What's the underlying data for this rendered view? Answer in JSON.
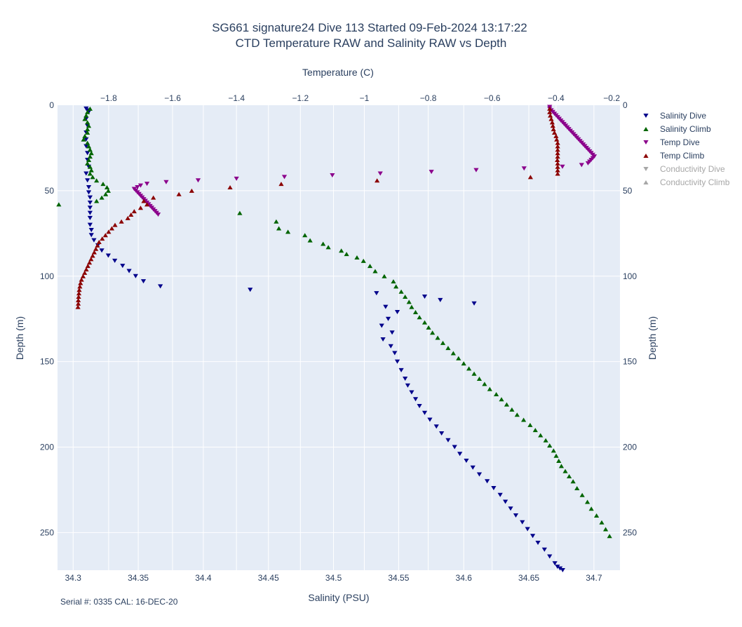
{
  "title_line1": "SG661 signature24 Dive 113 Started 09-Feb-2024 13:17:22",
  "title_line2": "CTD Temperature RAW and Salinity RAW vs Depth",
  "footnote": "Serial #: 0335  CAL: 16-DEC-20",
  "colors": {
    "plot_bg": "#e5ecf6",
    "grid": "#ffffff",
    "salinity_dive": "#00008b",
    "salinity_climb": "#006400",
    "temp_dive": "#8b008b",
    "temp_climb": "#8b0000",
    "conductivity": "#a7a7a7"
  },
  "chart_data": {
    "type": "scatter",
    "x_bottom": {
      "label": "Salinity (PSU)",
      "range": [
        34.288,
        34.72
      ],
      "ticks": [
        34.3,
        34.35,
        34.4,
        34.45,
        34.5,
        34.55,
        34.6,
        34.65,
        34.7
      ],
      "tick_labels": [
        "34.3",
        "34.35",
        "34.4",
        "34.45",
        "34.5",
        "34.55",
        "34.6",
        "34.65",
        "34.7"
      ]
    },
    "x_top": {
      "label": "Temperature (C)",
      "range": [
        -1.96,
        -0.2
      ],
      "ticks": [
        -1.8,
        -1.6,
        -1.4,
        -1.2,
        -1,
        -0.8,
        -0.6,
        -0.4,
        -0.2
      ],
      "tick_labels": [
        "−1.8",
        "−1.6",
        "−1.4",
        "−1.2",
        "−1",
        "−0.8",
        "−0.6",
        "−0.4",
        "−0.2"
      ]
    },
    "y": {
      "label": "Depth (m)",
      "range": [
        0,
        272
      ],
      "reversed": true,
      "ticks": [
        0,
        50,
        100,
        150,
        200,
        250
      ],
      "tick_labels": [
        "0",
        "50",
        "100",
        "150",
        "200",
        "250"
      ]
    },
    "grid": true,
    "legend_position": "right",
    "series": [
      {
        "name": "Salinity Dive",
        "axis": "salinity",
        "marker": "triangle-down",
        "color": "#00008b",
        "visible": true,
        "x": [
          34.31,
          34.311,
          34.312,
          34.31,
          34.311,
          34.31,
          34.31,
          34.31,
          34.311,
          34.311,
          34.312,
          34.31,
          34.311,
          34.312,
          34.312,
          34.313,
          34.313,
          34.313,
          34.313,
          34.313,
          34.313,
          34.314,
          34.314,
          34.316,
          34.319,
          34.322,
          34.327,
          34.332,
          34.338,
          34.343,
          34.348,
          34.354,
          34.367,
          34.436,
          34.533,
          34.57,
          34.582,
          34.608,
          34.54,
          34.549,
          34.542,
          34.537,
          34.545,
          34.538,
          34.544,
          34.547,
          34.549,
          34.552,
          34.555,
          34.557,
          34.56,
          34.563,
          34.566,
          34.57,
          34.574,
          34.579,
          34.583,
          34.588,
          34.593,
          34.597,
          34.602,
          34.607,
          34.612,
          34.618,
          34.623,
          34.628,
          34.632,
          34.636,
          34.64,
          34.645,
          34.649,
          34.653,
          34.657,
          34.662,
          34.666,
          34.67,
          34.672,
          34.674,
          34.676,
          34.679,
          34.682,
          34.685,
          34.689,
          34.693,
          34.698,
          34.703,
          34.708,
          34.712
        ],
        "y": [
          2,
          3,
          4,
          8,
          12,
          16,
          20,
          24,
          28,
          32,
          36,
          40,
          44,
          48,
          51,
          54,
          57,
          60,
          63,
          66,
          70,
          73,
          76,
          79,
          82,
          85,
          88,
          91,
          94,
          97,
          100,
          103,
          106,
          108,
          110,
          112,
          114,
          116,
          118,
          121,
          125,
          129,
          133,
          137,
          141,
          145,
          150,
          155,
          160,
          164,
          168,
          172,
          176,
          180,
          184,
          188,
          192,
          196,
          200,
          204,
          208,
          212,
          216,
          220,
          224,
          228,
          232,
          236,
          240,
          244,
          248,
          252,
          256,
          260,
          264,
          268,
          270,
          271,
          272,
          273,
          274,
          275,
          276,
          277,
          278,
          279,
          280,
          281
        ]
      },
      {
        "name": "Salinity Climb",
        "axis": "salinity",
        "marker": "triangle-up",
        "color": "#006400",
        "visible": true,
        "x": [
          34.313,
          34.311,
          34.31,
          34.309,
          34.311,
          34.312,
          34.311,
          34.311,
          34.309,
          34.308,
          34.311,
          34.312,
          34.313,
          34.314,
          34.313,
          34.312,
          34.311,
          34.313,
          34.314,
          34.313,
          34.315,
          34.318,
          34.323,
          34.326,
          34.327,
          34.325,
          34.322,
          34.318,
          34.289,
          34.428,
          34.456,
          34.458,
          34.465,
          34.478,
          34.482,
          34.492,
          34.496,
          34.506,
          34.51,
          34.518,
          34.523,
          34.528,
          34.532,
          34.539,
          34.546,
          34.548,
          34.552,
          34.555,
          34.558,
          34.56,
          34.563,
          34.566,
          34.57,
          34.573,
          34.576,
          34.58,
          34.584,
          34.588,
          34.592,
          34.596,
          34.6,
          34.604,
          34.608,
          34.612,
          34.616,
          34.62,
          34.625,
          34.629,
          34.633,
          34.637,
          34.641,
          34.646,
          34.651,
          34.655,
          34.659,
          34.663,
          34.666,
          34.669,
          34.671,
          34.673,
          34.675,
          34.678,
          34.681,
          34.684,
          34.687,
          34.691,
          34.695,
          34.698,
          34.702,
          34.706,
          34.709,
          34.712
        ],
        "y": [
          2,
          4,
          6,
          8,
          10,
          12,
          14,
          16,
          18,
          20,
          22,
          24,
          26,
          28,
          30,
          32,
          34,
          36,
          38,
          40,
          42,
          44,
          46,
          48,
          50,
          52,
          54,
          56,
          58,
          63,
          68,
          72,
          74,
          76,
          79,
          81,
          83,
          85,
          87,
          89,
          91,
          94,
          97,
          100,
          103,
          106,
          109,
          112,
          115,
          118,
          121,
          124,
          127,
          130,
          133,
          136,
          139,
          142,
          145,
          148,
          151,
          154,
          157,
          160,
          163,
          166,
          169,
          172,
          175,
          178,
          181,
          184,
          187,
          190,
          193,
          196,
          199,
          202,
          205,
          208,
          211,
          214,
          217,
          220,
          224,
          228,
          232,
          236,
          240,
          244,
          248,
          252
        ]
      },
      {
        "name": "Temp Dive",
        "axis": "temperature",
        "marker": "triangle-down",
        "color": "#8b008b",
        "visible": true,
        "x": [
          -0.42,
          -0.42,
          -0.415,
          -0.41,
          -0.405,
          -0.4,
          -0.395,
          -0.39,
          -0.385,
          -0.38,
          -0.375,
          -0.37,
          -0.365,
          -0.36,
          -0.355,
          -0.35,
          -0.345,
          -0.34,
          -0.335,
          -0.33,
          -0.325,
          -0.32,
          -0.315,
          -0.31,
          -0.305,
          -0.3,
          -0.295,
          -0.29,
          -0.285,
          -0.28,
          -0.285,
          -0.29,
          -0.295,
          -0.3,
          -0.32,
          -0.38,
          -0.5,
          -0.65,
          -0.79,
          -0.95,
          -1.1,
          -1.25,
          -1.4,
          -1.52,
          -1.62,
          -1.68,
          -1.7,
          -1.71,
          -1.72,
          -1.715,
          -1.71,
          -1.705,
          -1.7,
          -1.695,
          -1.69,
          -1.685,
          -1.68,
          -1.675,
          -1.67,
          -1.665,
          -1.66,
          -1.655,
          -1.65,
          -1.645
        ],
        "y": [
          1,
          2,
          3,
          4,
          5,
          6,
          7,
          8,
          9,
          10,
          11,
          12,
          13,
          14,
          15,
          16,
          17,
          18,
          19,
          20,
          21,
          22,
          23,
          24,
          25,
          26,
          27,
          28,
          29,
          30,
          31,
          32,
          33,
          34,
          35,
          36,
          37,
          38,
          39,
          40,
          41,
          42,
          43,
          44,
          45,
          46,
          47,
          48,
          49,
          50,
          51,
          52,
          53,
          54,
          55,
          56,
          57,
          58,
          59,
          60,
          61,
          62,
          63,
          64
        ]
      },
      {
        "name": "Temp Climb",
        "axis": "temperature",
        "marker": "triangle-up",
        "color": "#8b0000",
        "visible": true,
        "x": [
          -0.42,
          -0.42,
          -0.418,
          -0.415,
          -0.412,
          -0.41,
          -0.408,
          -0.405,
          -0.4,
          -0.398,
          -0.395,
          -0.395,
          -0.395,
          -0.395,
          -0.395,
          -0.396,
          -0.395,
          -0.395,
          -0.395,
          -0.395,
          -0.48,
          -0.96,
          -1.26,
          -1.42,
          -1.54,
          -1.58,
          -1.66,
          -1.69,
          -1.68,
          -1.7,
          -1.72,
          -1.73,
          -1.74,
          -1.76,
          -1.78,
          -1.79,
          -1.8,
          -1.81,
          -1.82,
          -1.83,
          -1.835,
          -1.84,
          -1.845,
          -1.85,
          -1.855,
          -1.86,
          -1.865,
          -1.87,
          -1.875,
          -1.88,
          -1.885,
          -1.888,
          -1.89,
          -1.892,
          -1.893,
          -1.894,
          -1.895,
          -1.895,
          -1.896
        ],
        "y": [
          2,
          4,
          6,
          8,
          10,
          12,
          14,
          16,
          18,
          20,
          22,
          24,
          26,
          28,
          30,
          32,
          34,
          36,
          38,
          40,
          42,
          44,
          46,
          48,
          50,
          52,
          54,
          56,
          58,
          60,
          62,
          64,
          66,
          68,
          70,
          72,
          74,
          76,
          78,
          80,
          82,
          84,
          86,
          88,
          90,
          92,
          94,
          96,
          98,
          100,
          102,
          104,
          106,
          108,
          110,
          112,
          114,
          116,
          118
        ]
      },
      {
        "name": "Conductivity Dive",
        "axis": "none",
        "marker": "triangle-down",
        "color": "#a7a7a7",
        "visible": false,
        "x": [],
        "y": []
      },
      {
        "name": "Conductivity Climb",
        "axis": "none",
        "marker": "triangle-up",
        "color": "#a7a7a7",
        "visible": false,
        "x": [],
        "y": []
      }
    ]
  }
}
